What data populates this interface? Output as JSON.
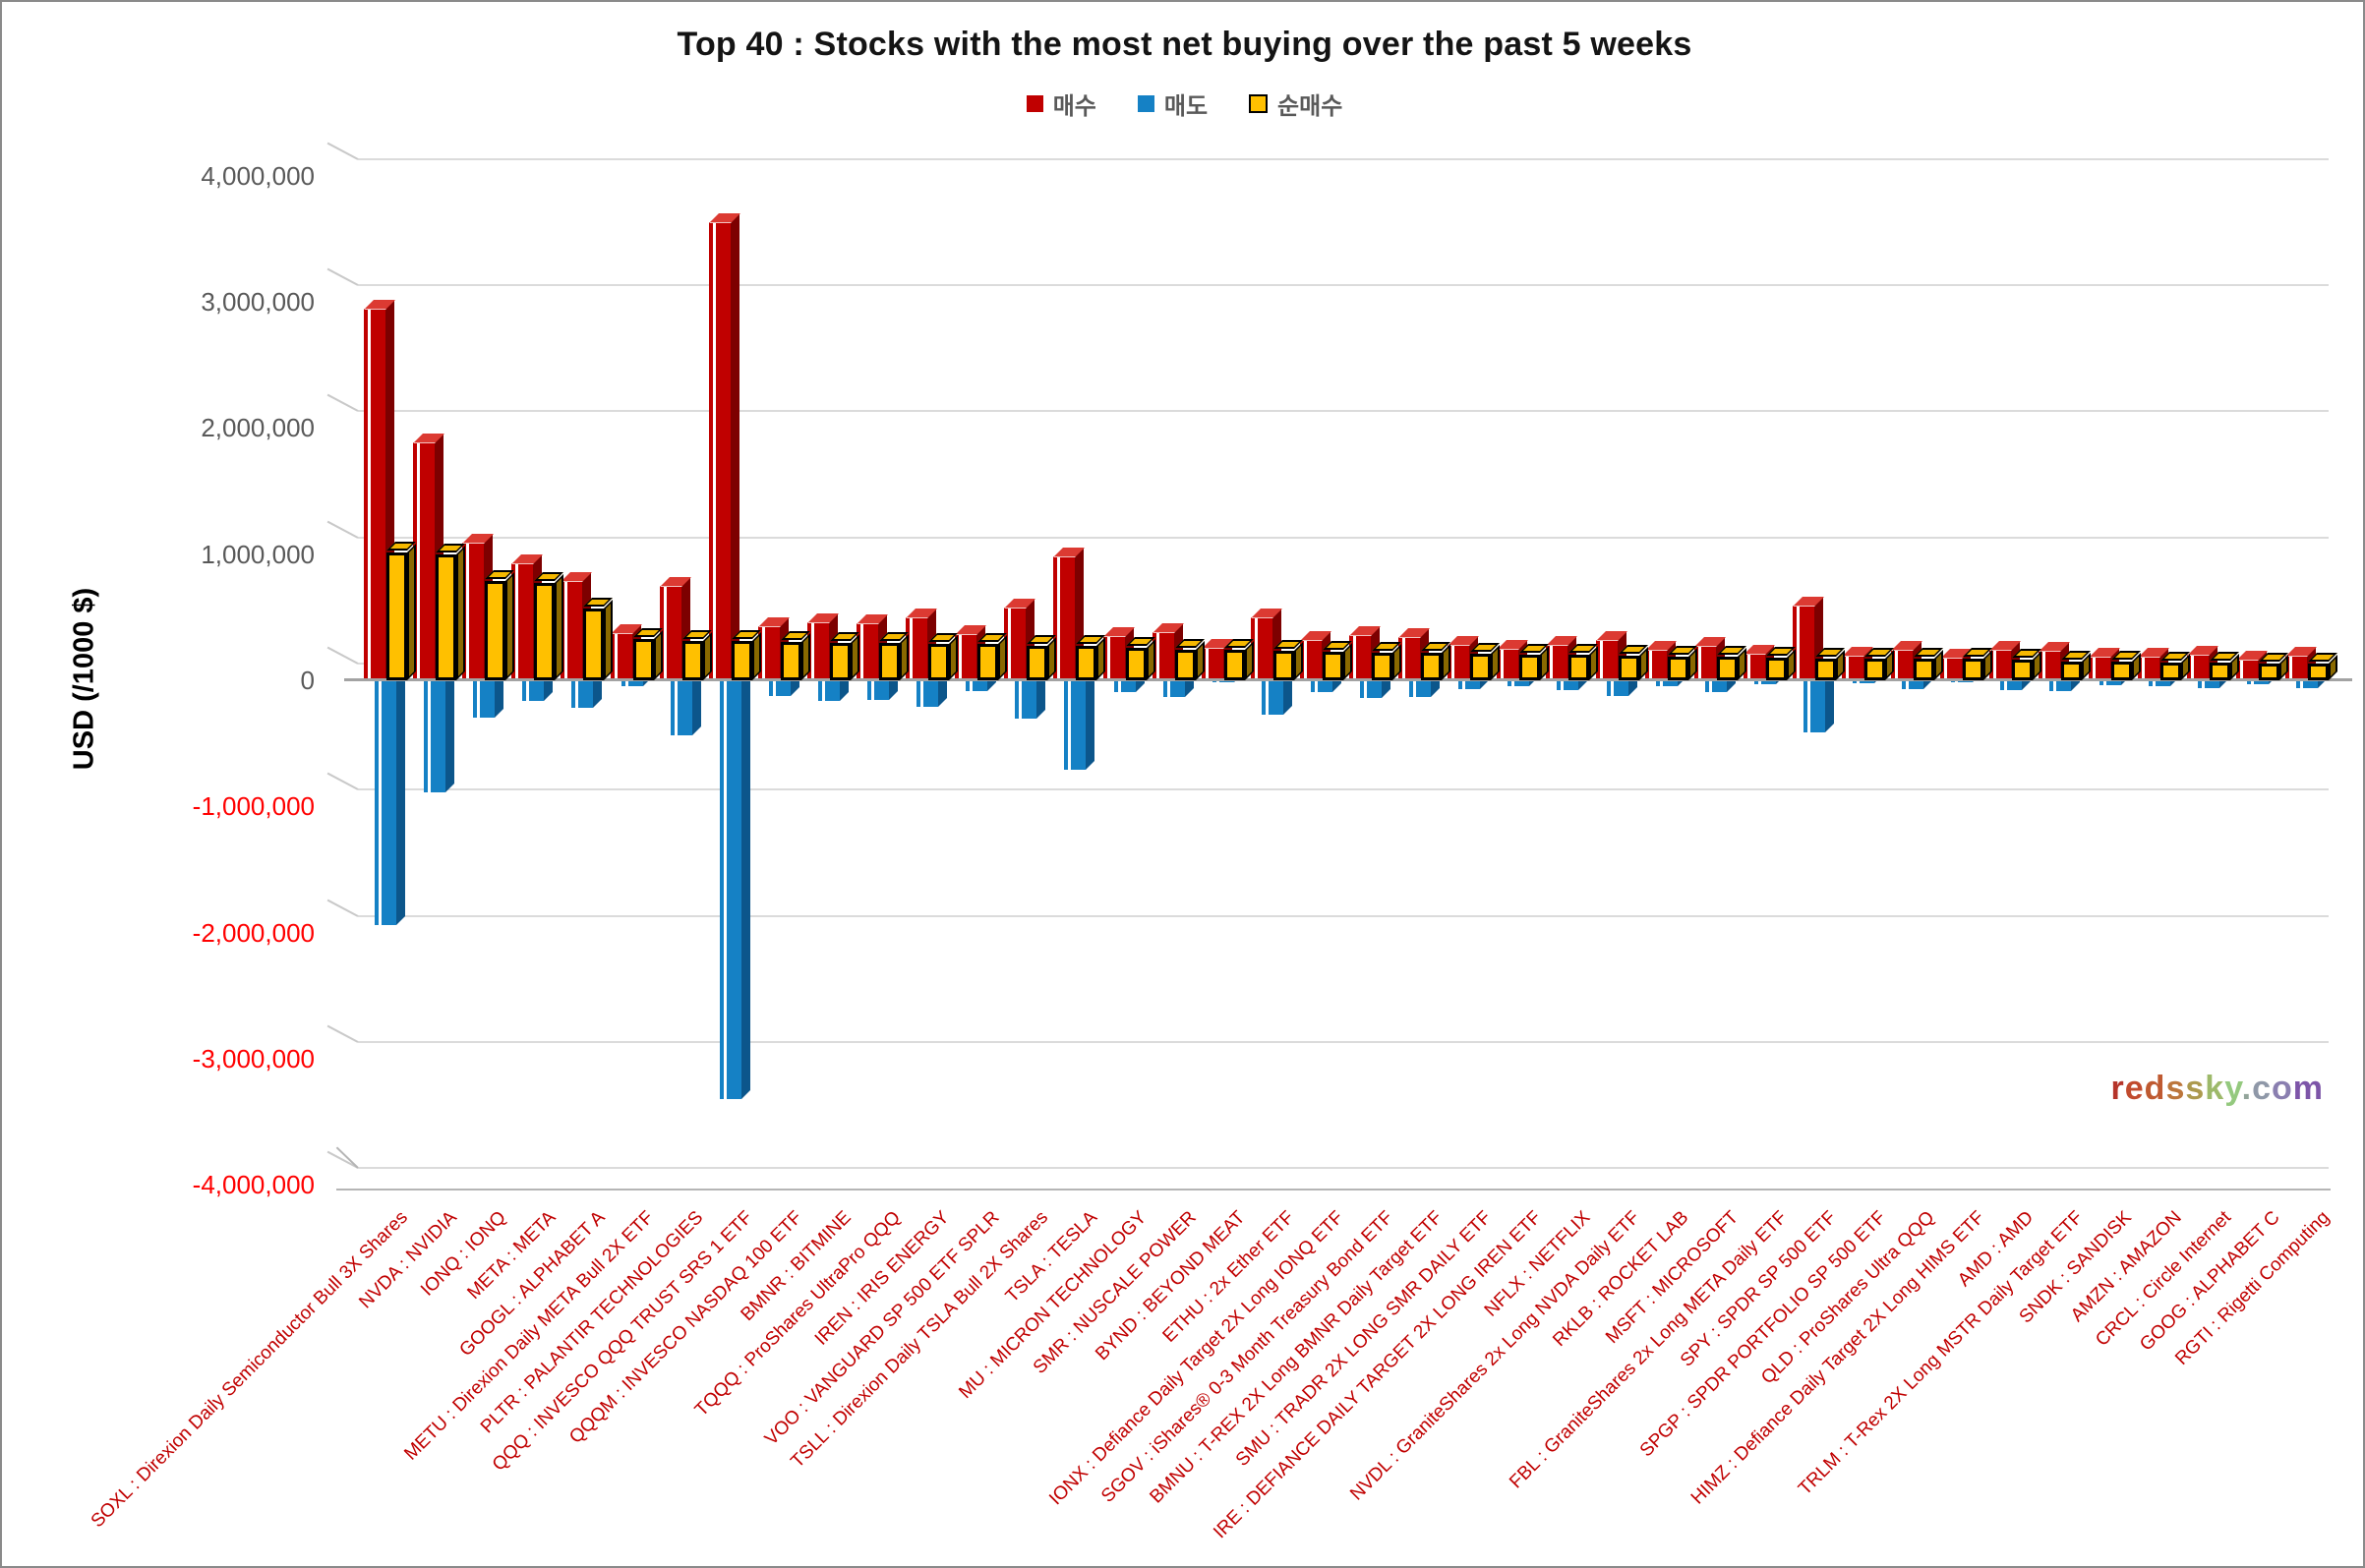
{
  "title": "Top 40 : Stocks with the most net buying over the past 5 weeks",
  "legend": [
    {
      "label": "매수",
      "color": "#c00000"
    },
    {
      "label": "매도",
      "color": "#1581c5"
    },
    {
      "label": "순매수",
      "color": "#ffc000"
    }
  ],
  "y_axis": {
    "title": "USD (/1000 $)",
    "min": -4000000,
    "max": 4000000,
    "step": 1000000,
    "tick_labels": [
      "4,000,000",
      "3,000,000",
      "2,000,000",
      "1,000,000",
      "0",
      "-1,000,000",
      "-2,000,000",
      "-3,000,000",
      "-4,000,000"
    ],
    "positive_label_color": "#595959",
    "negative_label_color": "#ff0000"
  },
  "watermark": {
    "text": "redssky.com",
    "char_colors": [
      "#b5342a",
      "#c14b2e",
      "#bf5a31",
      "#bc763b",
      "#ac9a4e",
      "#9db96a",
      "#94c97e",
      "#93a59b",
      "#8f98a8",
      "#8a7fb0",
      "#7d55a8"
    ]
  },
  "chart_data": {
    "type": "bar",
    "style": "3d-column",
    "title": "Top 40 : Stocks with the most net buying over the past 5 weeks",
    "ylabel": "USD (/1000 $)",
    "ylim": [
      -4000000,
      4000000
    ],
    "grid": true,
    "legend_position": "top",
    "x_tick_label_color": "#c00000",
    "categories": [
      "SOXL : Direxion Daily Semiconductor Bull 3X Shares",
      "NVDA : NVIDIA",
      "IONQ : IONQ",
      "META : META",
      "GOOGL : ALPHABET A",
      "METU : Direxion Daily META Bull 2X ETF",
      "PLTR : PALANTIR TECHNOLOGIES",
      "QQQ : INVESCO QQQ TRUST SRS 1 ETF",
      "QQQM : INVESCO NASDAQ 100 ETF",
      "BMNR : BITMINE",
      "TQQQ : ProShares UltraPro QQQ",
      "IREN : IRIS ENERGY",
      "VOO : VANGUARD SP 500 ETF SPLR",
      "TSLL : Direxion Daily TSLA Bull 2X Shares",
      "TSLA : TESLA",
      "MU : MICRON TECHNOLOGY",
      "SMR : NUSCALE POWER",
      "BYND : BEYOND MEAT",
      "ETHU : 2x Ether ETF",
      "IONX : Defiance Daily Target 2X Long IONQ ETF",
      "SGOV : iShares® 0-3 Month Treasury Bond ETF",
      "BMNU : T-REX 2X Long BMNR Daily Target ETF",
      "SMU : TRADR 2X LONG SMR DAILY ETF",
      "IRE : DEFIANCE DAILY TARGET 2X LONG IREN ETF",
      "NFLX : NETFLIX",
      "NVDL : GraniteShares 2x Long NVDA Daily ETF",
      "RKLB : ROCKET LAB",
      "MSFT : MICROSOFT",
      "FBL : GraniteShares 2x Long META Daily ETF",
      "SPY : SPDR SP 500 ETF",
      "SPGP : SPDR PORTFOLIO SP 500 ETF",
      "QLD : ProShares Ultra QQQ",
      "HIMZ : Defiance Daily Target 2X Long HIMS ETF",
      "AMD : AMD",
      "TRLM : T-Rex 2X Long MSTR Daily Target ETF",
      "SNDK : SANDISK",
      "AMZN : AMAZON",
      "CRCL : Circle Internet",
      "GOOG : ALPHABET C",
      "RGTI : Rigetti Computing"
    ],
    "series": [
      {
        "name": "매수",
        "color": "#c00000",
        "values": [
          2950000,
          1890000,
          1090000,
          930000,
          790000,
          375000,
          750000,
          3630000,
          430000,
          460000,
          450000,
          500000,
          370000,
          580000,
          980000,
          350000,
          380000,
          255000,
          500000,
          320000,
          360000,
          345000,
          280000,
          250000,
          280000,
          320000,
          240000,
          275000,
          210000,
          590000,
          195000,
          240000,
          180000,
          245000,
          235000,
          190000,
          190000,
          205000,
          165000,
          195000
        ]
      },
      {
        "name": "매도",
        "color": "#1581c5",
        "values": [
          -1940000,
          -890000,
          -300000,
          -160000,
          -220000,
          -45000,
          -435000,
          -3320000,
          -125000,
          -160000,
          -155000,
          -210000,
          -85000,
          -305000,
          -710000,
          -95000,
          -135000,
          -15000,
          -270000,
          -95000,
          -140000,
          -130000,
          -70000,
          -45000,
          -80000,
          -125000,
          -50000,
          -90000,
          -30000,
          -415000,
          -23000,
          -70000,
          -12000,
          -80000,
          -85000,
          -42000,
          -47000,
          -65000,
          -30000,
          -65000
        ]
      },
      {
        "name": "순매수",
        "color": "#ffc000",
        "values": [
          1010000,
          1000000,
          790000,
          770000,
          570000,
          330000,
          315000,
          310000,
          305000,
          300000,
          295000,
          290000,
          285000,
          275000,
          270000,
          255000,
          245000,
          240000,
          230000,
          225000,
          220000,
          215000,
          210000,
          205000,
          200000,
          195000,
          190000,
          185000,
          180000,
          175000,
          172000,
          170000,
          168000,
          165000,
          150000,
          148000,
          143000,
          140000,
          135000,
          130000
        ]
      }
    ]
  }
}
